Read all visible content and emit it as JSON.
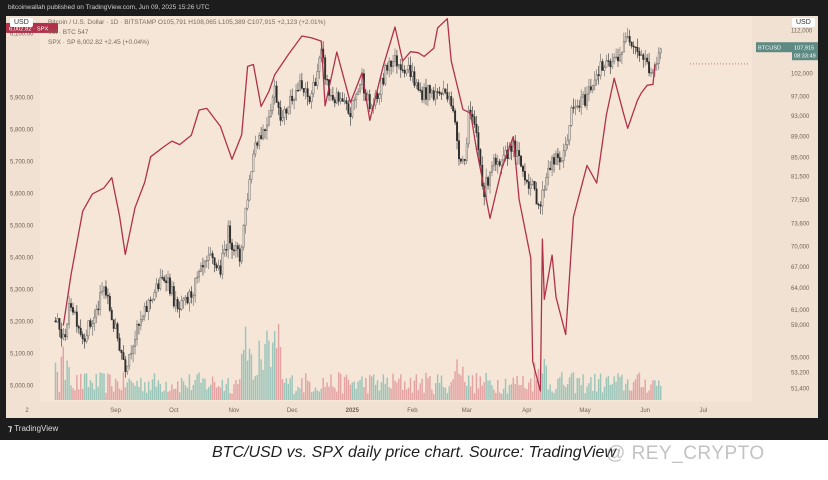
{
  "header": {
    "publisher_line": "bitcoinwallah published on TradingView.com, Jun 09, 2025 15:26 UTC",
    "series_line": "Bitcoin / U.S. Dollar · 1D · BITSTAMP  O105,791 H108,065 L105,389 C107,915 +2,123 (+2.01%)",
    "volume_line": "Vol · BTC  547",
    "spx_line": "SPX · SP  6,002.82  +2.45 (+0.04%)",
    "left_currency": "USD",
    "right_currency": "USD"
  },
  "footer": {
    "logo_text": "TradingView"
  },
  "caption": "BTC/USD vs. SPX daily price chart. Source: TradingView",
  "watermark": "@ REY_CRYPTO",
  "colors": {
    "background": "#f5e6d8",
    "spx_line": "#b0324a",
    "candle_up": "#666666",
    "candle_down": "#2d2d2d",
    "volume_up": "#9cc5ba",
    "volume_down": "#e3a3a3",
    "btc_badge": "#5f8a84"
  },
  "chart_data": {
    "type": "line",
    "title": "",
    "x_tick_labels": [
      "2",
      "Sep",
      "Oct",
      "Nov",
      "Dec",
      "2025",
      "Feb",
      "Mar",
      "Apr",
      "May",
      "Jun",
      "Jul"
    ],
    "left_axis": {
      "label": "SPX",
      "ticks": [
        "5,000.00",
        "5,100.00",
        "5,200.00",
        "5,300.00",
        "5,400.00",
        "5,500.00",
        "5,600.00",
        "5,700.00",
        "5,800.00",
        "5,900.00",
        "6,100.00"
      ],
      "range": [
        4960,
        6140
      ]
    },
    "right_axis": {
      "label": "BTC/USD",
      "ticks": [
        "51,400",
        "53,200",
        "55,000",
        "59,000",
        "61,000",
        "64,000",
        "67,000",
        "70,000",
        "73,600",
        "77,500",
        "81,500",
        "85,000",
        "89,000",
        "93,000",
        "97,000",
        "102,000",
        "112,000"
      ],
      "scale": "log",
      "range": [
        50300,
        114500
      ]
    },
    "badges": [
      {
        "name": "SPX",
        "text": "6,002.82 · SPX",
        "side": "left",
        "value": 6002.82
      },
      {
        "name": "BTCUSD",
        "text": "BTCUSD  107,915",
        "countdown": "08:33:49",
        "side": "right",
        "value": 107915
      }
    ],
    "series": [
      {
        "name": "SPX",
        "axis": "left",
        "points": [
          [
            "2024-08-05",
            5186
          ],
          [
            "2024-08-09",
            5344
          ],
          [
            "2024-08-15",
            5543
          ],
          [
            "2024-08-20",
            5597
          ],
          [
            "2024-08-26",
            5616
          ],
          [
            "2024-08-30",
            5648
          ],
          [
            "2024-09-03",
            5529
          ],
          [
            "2024-09-06",
            5408
          ],
          [
            "2024-09-11",
            5554
          ],
          [
            "2024-09-16",
            5633
          ],
          [
            "2024-09-19",
            5713
          ],
          [
            "2024-09-26",
            5745
          ],
          [
            "2024-09-30",
            5762
          ],
          [
            "2024-10-04",
            5751
          ],
          [
            "2024-10-10",
            5780
          ],
          [
            "2024-10-14",
            5859
          ],
          [
            "2024-10-18",
            5864
          ],
          [
            "2024-10-25",
            5808
          ],
          [
            "2024-10-31",
            5705
          ],
          [
            "2024-11-05",
            5782
          ],
          [
            "2024-11-08",
            5995
          ],
          [
            "2024-11-11",
            6001
          ],
          [
            "2024-11-15",
            5870
          ],
          [
            "2024-11-19",
            5917
          ],
          [
            "2024-11-22",
            5969
          ],
          [
            "2024-11-29",
            6032
          ],
          [
            "2024-12-06",
            6090
          ],
          [
            "2024-12-11",
            6084
          ],
          [
            "2024-12-16",
            6074
          ],
          [
            "2024-12-18",
            5872
          ],
          [
            "2024-12-24",
            6040
          ],
          [
            "2024-12-31",
            5882
          ],
          [
            "2025-01-06",
            5975
          ],
          [
            "2025-01-10",
            5827
          ],
          [
            "2025-01-15",
            5949
          ],
          [
            "2025-01-17",
            5997
          ],
          [
            "2025-01-23",
            6118
          ],
          [
            "2025-01-27",
            6012
          ],
          [
            "2025-01-31",
            6041
          ],
          [
            "2025-02-04",
            6038
          ],
          [
            "2025-02-07",
            6026
          ],
          [
            "2025-02-12",
            6052
          ],
          [
            "2025-02-14",
            6115
          ],
          [
            "2025-02-19",
            6144
          ],
          [
            "2025-02-21",
            6013
          ],
          [
            "2025-02-27",
            5861
          ],
          [
            "2025-03-03",
            5849
          ],
          [
            "2025-03-06",
            5738
          ],
          [
            "2025-03-10",
            5614
          ],
          [
            "2025-03-13",
            5521
          ],
          [
            "2025-03-19",
            5675
          ],
          [
            "2025-03-25",
            5776
          ],
          [
            "2025-03-28",
            5580
          ],
          [
            "2025-04-03",
            5396
          ],
          [
            "2025-04-04",
            5074
          ],
          [
            "2025-04-08",
            4982
          ],
          [
            "2025-04-09",
            5456
          ],
          [
            "2025-04-10",
            5268
          ],
          [
            "2025-04-14",
            5406
          ],
          [
            "2025-04-16",
            5275
          ],
          [
            "2025-04-21",
            5158
          ],
          [
            "2025-04-25",
            5525
          ],
          [
            "2025-05-02",
            5686
          ],
          [
            "2025-05-07",
            5631
          ],
          [
            "2025-05-12",
            5844
          ],
          [
            "2025-05-16",
            5958
          ],
          [
            "2025-05-21",
            5844
          ],
          [
            "2025-05-23",
            5802
          ],
          [
            "2025-05-28",
            5889
          ],
          [
            "2025-05-30",
            5912
          ],
          [
            "2025-06-02",
            5936
          ],
          [
            "2025-06-05",
            5939
          ],
          [
            "2025-06-06",
            6000
          ]
        ]
      },
      {
        "name": "BTC/USD",
        "axis": "right",
        "candle_anchors": [
          [
            "2024-08-01",
            59500
          ],
          [
            "2024-08-05",
            57000
          ],
          [
            "2024-08-09",
            62000
          ],
          [
            "2024-08-15",
            57500
          ],
          [
            "2024-08-21",
            59800
          ],
          [
            "2024-08-26",
            64000
          ],
          [
            "2024-08-31",
            59000
          ],
          [
            "2024-09-06",
            54000
          ],
          [
            "2024-09-10",
            57000
          ],
          [
            "2024-09-15",
            59800
          ],
          [
            "2024-09-20",
            63000
          ],
          [
            "2024-09-27",
            65800
          ],
          [
            "2024-10-03",
            60600
          ],
          [
            "2024-10-08",
            62100
          ],
          [
            "2024-10-15",
            66000
          ],
          [
            "2024-10-20",
            68000
          ],
          [
            "2024-10-25",
            66500
          ],
          [
            "2024-10-29",
            72000
          ],
          [
            "2024-11-04",
            68000
          ],
          [
            "2024-11-07",
            75800
          ],
          [
            "2024-11-12",
            88000
          ],
          [
            "2024-11-17",
            90500
          ],
          [
            "2024-11-22",
            98500
          ],
          [
            "2024-11-26",
            92000
          ],
          [
            "2024-12-01",
            97500
          ],
          [
            "2024-12-05",
            99000
          ],
          [
            "2024-12-10",
            96000
          ],
          [
            "2024-12-16",
            106000
          ],
          [
            "2024-12-20",
            97500
          ],
          [
            "2024-12-26",
            95500
          ],
          [
            "2024-12-31",
            93500
          ],
          [
            "2025-01-06",
            101000
          ],
          [
            "2025-01-10",
            94500
          ],
          [
            "2025-01-14",
            96500
          ],
          [
            "2025-01-20",
            105000
          ],
          [
            "2025-01-25",
            104500
          ],
          [
            "2025-01-31",
            102500
          ],
          [
            "2025-02-04",
            98000
          ],
          [
            "2025-02-12",
            97500
          ],
          [
            "2025-02-20",
            98000
          ],
          [
            "2025-02-25",
            86000
          ],
          [
            "2025-02-28",
            84000
          ],
          [
            "2025-03-02",
            94000
          ],
          [
            "2025-03-06",
            89000
          ],
          [
            "2025-03-10",
            78500
          ],
          [
            "2025-03-14",
            84000
          ],
          [
            "2025-03-18",
            82500
          ],
          [
            "2025-03-24",
            87500
          ],
          [
            "2025-03-30",
            82500
          ],
          [
            "2025-04-06",
            78000
          ],
          [
            "2025-04-08",
            76500
          ],
          [
            "2025-04-12",
            83500
          ],
          [
            "2025-04-20",
            85000
          ],
          [
            "2025-04-24",
            93500
          ],
          [
            "2025-05-01",
            96500
          ],
          [
            "2025-05-08",
            103000
          ],
          [
            "2025-05-14",
            103500
          ],
          [
            "2025-05-21",
            108000
          ],
          [
            "2025-05-23",
            111500
          ],
          [
            "2025-05-28",
            107500
          ],
          [
            "2025-06-02",
            104000
          ],
          [
            "2025-06-05",
            101500
          ],
          [
            "2025-06-08",
            105500
          ],
          [
            "2025-06-09",
            107915
          ]
        ]
      },
      {
        "name": "Vol · BTC",
        "type": "volume",
        "pattern": "daily volume bars along the bottom, colored up/down; taller spikes around Nov 2024 and Apr 2025"
      }
    ],
    "grid": false,
    "legend": "top-left"
  }
}
